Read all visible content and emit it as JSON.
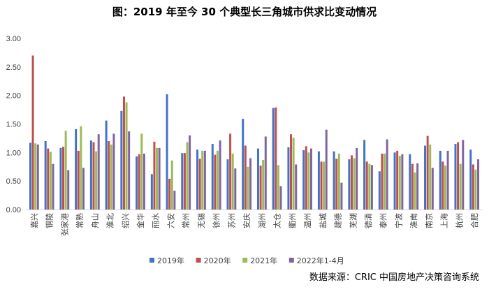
{
  "chart_data": {
    "type": "bar",
    "title": "图：2019 年至今 30 个典型长三角城市供求比变动情况",
    "source": "数据来源：CRIC 中国房地产决策咨询系统",
    "ylim": [
      0,
      3
    ],
    "yticks": [
      "0.00",
      "0.50",
      "1.00",
      "1.50",
      "2.00",
      "2.50",
      "3.00"
    ],
    "grid": false,
    "legend_position": "bottom",
    "categories": [
      "嘉兴",
      "铜陵",
      "张家港",
      "常熟",
      "舟山",
      "淮北",
      "绍兴",
      "金华",
      "丽水",
      "六安",
      "常州",
      "无锡",
      "徐州",
      "苏州",
      "安庆",
      "湖州",
      "太仓",
      "衢州",
      "温州",
      "盐城",
      "建德",
      "芜湖",
      "德清",
      "泰州",
      "宁波",
      "淮南",
      "南京",
      "上海",
      "杭州",
      "合肥"
    ],
    "series": [
      {
        "name": "2019年",
        "color": "#4472C4",
        "values": [
          1.17,
          1.2,
          1.08,
          1.41,
          1.21,
          1.56,
          1.73,
          0.93,
          0.62,
          2.02,
          0.99,
          1.05,
          1.15,
          0.88,
          1.59,
          1.07,
          1.78,
          1.09,
          1.04,
          1.02,
          1.02,
          0.88,
          1.22,
          0.67,
          1.0,
          0.97,
          1.12,
          1.03,
          1.15,
          1.05
        ]
      },
      {
        "name": "2020年",
        "color": "#C0504D",
        "values": [
          2.7,
          1.07,
          1.1,
          1.03,
          1.18,
          1.2,
          1.98,
          0.97,
          1.19,
          0.54,
          0.99,
          0.89,
          0.96,
          1.33,
          1.12,
          0.77,
          1.79,
          1.32,
          1.11,
          0.84,
          0.89,
          0.95,
          0.84,
          0.98,
          1.03,
          0.8,
          1.29,
          0.84,
          1.18,
          0.79
        ]
      },
      {
        "name": "2021年",
        "color": "#9BBB59",
        "values": [
          1.16,
          1.01,
          1.38,
          1.46,
          1.02,
          1.14,
          1.88,
          1.33,
          1.08,
          0.86,
          1.18,
          1.03,
          1.03,
          0.98,
          0.75,
          0.87,
          0.78,
          1.26,
          1.0,
          0.84,
          0.98,
          0.9,
          0.8,
          0.98,
          0.94,
          0.65,
          1.14,
          0.77,
          0.8,
          0.7
        ]
      },
      {
        "name": "2022年1-4月",
        "color": "#8064A2",
        "values": [
          1.14,
          0.8,
          0.69,
          0.73,
          1.32,
          1.33,
          1.37,
          0.98,
          1.08,
          0.33,
          1.3,
          1.03,
          1.21,
          0.72,
          0.9,
          1.28,
          0.41,
          0.79,
          1.07,
          1.4,
          0.47,
          1.08,
          0.78,
          1.23,
          0.97,
          0.81,
          0.73,
          1.03,
          1.22,
          0.88
        ]
      }
    ]
  }
}
